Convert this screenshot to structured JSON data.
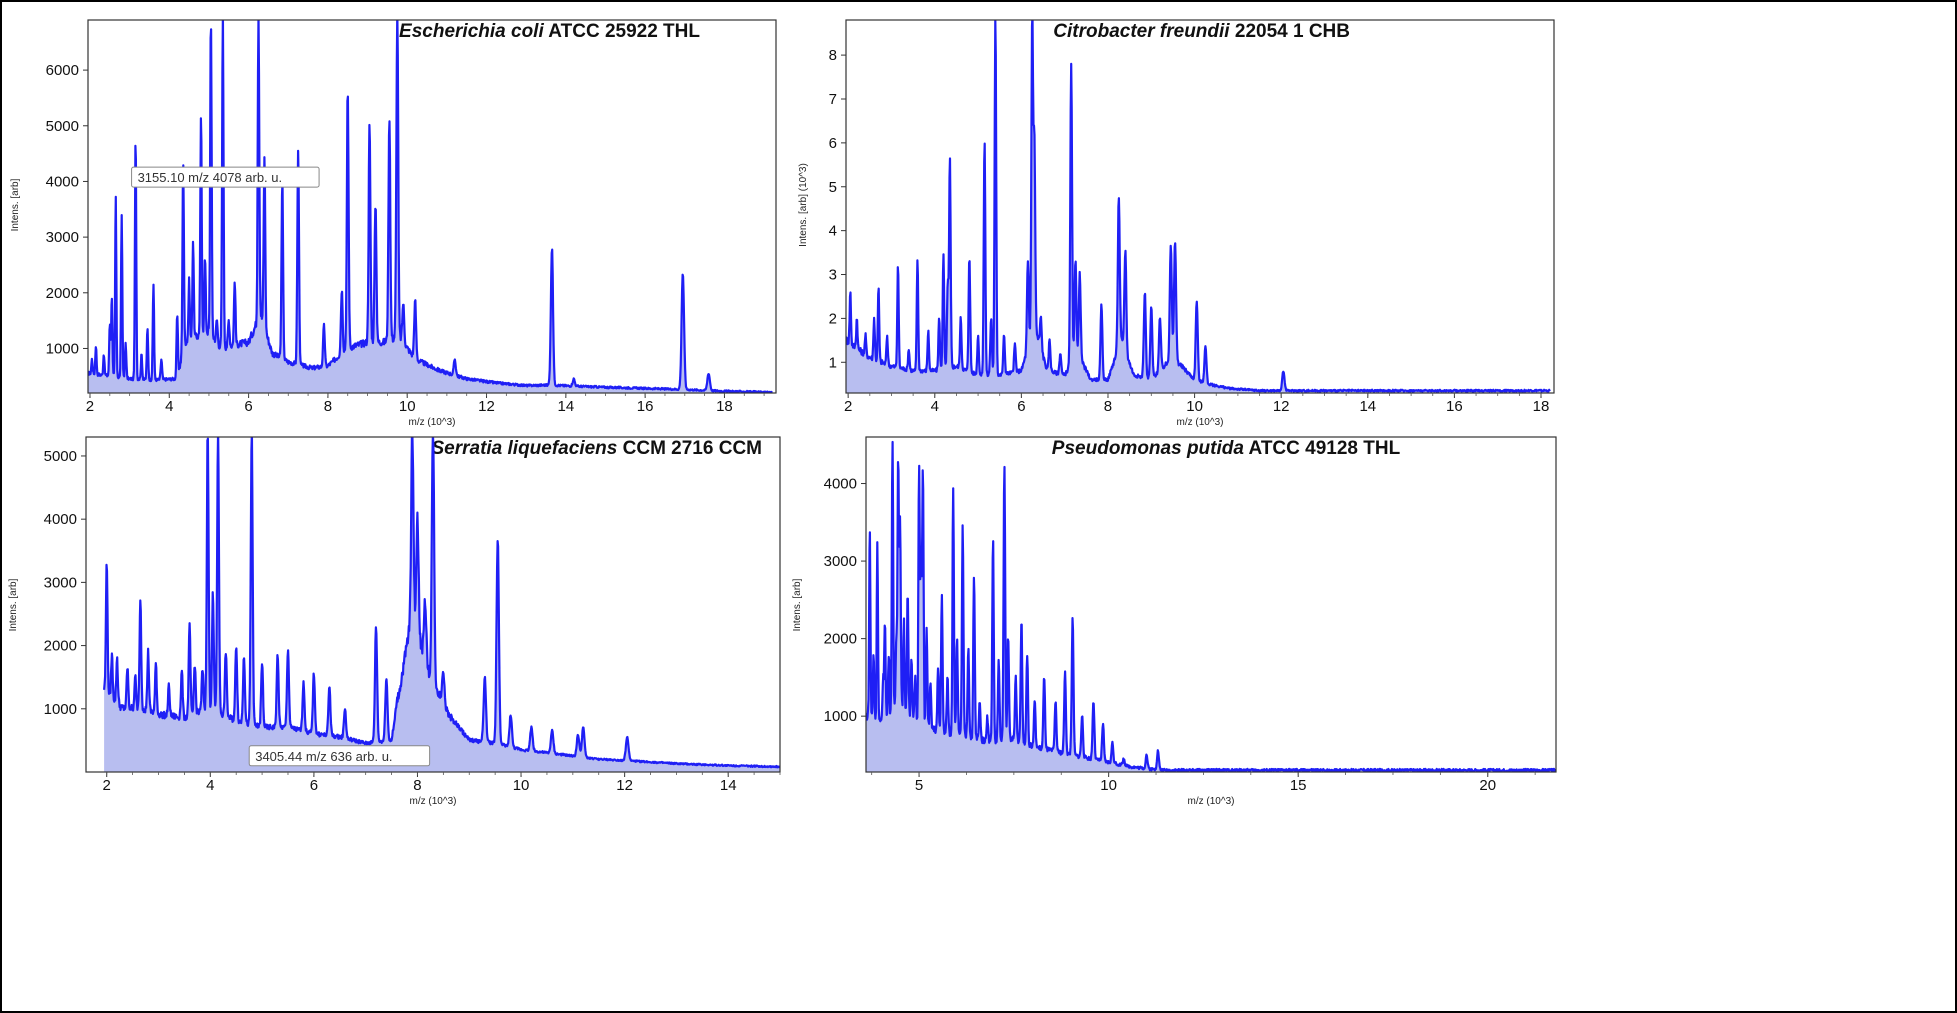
{
  "chart_data": [
    {
      "type": "area",
      "title_italic": "Escherichia coli",
      "title_rest": " ATCC 25922 THL",
      "xlabel": "m/z (10^3)",
      "ylabel": "Intens. [arb]",
      "xlim": [
        1.95,
        19.3
      ],
      "ylim": [
        200,
        6900
      ],
      "xticks": [
        2,
        4,
        6,
        8,
        10,
        12,
        14,
        16,
        18
      ],
      "yticks": [
        1000,
        2000,
        3000,
        4000,
        5000,
        6000
      ],
      "baseline": [
        [
          1.95,
          550
        ],
        [
          2.5,
          500
        ],
        [
          3,
          450
        ],
        [
          3.6,
          430
        ],
        [
          4.2,
          450
        ],
        [
          4.4,
          1100
        ],
        [
          4.7,
          1200
        ],
        [
          5,
          1300
        ],
        [
          5.3,
          1000
        ],
        [
          6,
          1100
        ],
        [
          6.3,
          1600
        ],
        [
          6.6,
          900
        ],
        [
          7,
          750
        ],
        [
          7.6,
          640
        ],
        [
          8,
          680
        ],
        [
          8.5,
          1000
        ],
        [
          9,
          1100
        ],
        [
          9.4,
          1100
        ],
        [
          9.8,
          1200
        ],
        [
          10.2,
          800
        ],
        [
          10.8,
          600
        ],
        [
          11.5,
          450
        ],
        [
          12.2,
          380
        ],
        [
          13,
          330
        ],
        [
          13.6,
          340
        ],
        [
          14.2,
          320
        ],
        [
          15,
          300
        ],
        [
          16,
          280
        ],
        [
          17,
          260
        ],
        [
          18,
          230
        ],
        [
          19.2,
          210
        ]
      ],
      "peaks": [
        [
          2.05,
          800
        ],
        [
          2.15,
          1050
        ],
        [
          2.35,
          900
        ],
        [
          2.5,
          1450
        ],
        [
          2.55,
          1950
        ],
        [
          2.65,
          3750
        ],
        [
          2.8,
          3400
        ],
        [
          2.9,
          1100
        ],
        [
          3.15,
          4850
        ],
        [
          3.3,
          900
        ],
        [
          3.45,
          1350
        ],
        [
          3.6,
          2150
        ],
        [
          3.8,
          800
        ],
        [
          4.2,
          1600
        ],
        [
          4.35,
          4350
        ],
        [
          4.5,
          2200
        ],
        [
          4.6,
          2950
        ],
        [
          4.8,
          5150
        ],
        [
          4.9,
          2600
        ],
        [
          5.05,
          7000
        ],
        [
          5.2,
          1500
        ],
        [
          5.35,
          7000
        ],
        [
          5.5,
          1500
        ],
        [
          5.65,
          2200
        ],
        [
          6.25,
          7000
        ],
        [
          6.4,
          4400
        ],
        [
          6.85,
          4050
        ],
        [
          7.25,
          4550
        ],
        [
          7.9,
          1400
        ],
        [
          8.35,
          2050
        ],
        [
          8.5,
          5650
        ],
        [
          9.05,
          5000
        ],
        [
          9.2,
          3600
        ],
        [
          9.55,
          5150
        ],
        [
          9.75,
          7000
        ],
        [
          9.9,
          1800
        ],
        [
          10.2,
          1850
        ],
        [
          11.2,
          800
        ],
        [
          13.65,
          2800
        ],
        [
          14.2,
          450
        ],
        [
          16.95,
          2350
        ],
        [
          17.6,
          550
        ]
      ],
      "annotation": "3155.10 m/z  4078 arb. u.",
      "annotation_at": [
        3.15,
        4078
      ],
      "y_exp": ""
    },
    {
      "type": "area",
      "title_italic": "Citrobacter freundii",
      "title_rest": " 22054 1 CHB",
      "xlabel": "m/z (10^3)",
      "ylabel": "Intens. [arb] (10^3)",
      "xlim": [
        1.95,
        18.3
      ],
      "ylim": [
        0.3,
        8.8
      ],
      "xticks": [
        2,
        4,
        6,
        8,
        10,
        12,
        14,
        16,
        18
      ],
      "yticks": [
        1,
        2,
        3,
        4,
        5,
        6,
        7,
        8
      ],
      "baseline": [
        [
          1.95,
          1.5
        ],
        [
          2.2,
          1.3
        ],
        [
          2.5,
          1.1
        ],
        [
          3,
          0.9
        ],
        [
          3.5,
          0.8
        ],
        [
          4,
          0.8
        ],
        [
          4.5,
          0.9
        ],
        [
          5,
          0.7
        ],
        [
          5.5,
          0.7
        ],
        [
          6,
          0.8
        ],
        [
          6.3,
          1.8
        ],
        [
          6.6,
          0.8
        ],
        [
          7,
          0.7
        ],
        [
          7.3,
          1.2
        ],
        [
          7.6,
          0.6
        ],
        [
          8,
          0.6
        ],
        [
          8.3,
          1.5
        ],
        [
          8.6,
          0.7
        ],
        [
          9,
          0.6
        ],
        [
          9.5,
          1.1
        ],
        [
          10,
          0.6
        ],
        [
          10.3,
          0.5
        ],
        [
          10.8,
          0.4
        ],
        [
          11.5,
          0.35
        ],
        [
          12,
          0.35
        ],
        [
          18.2,
          0.35
        ]
      ],
      "peaks": [
        [
          2.05,
          2.6
        ],
        [
          2.2,
          2.0
        ],
        [
          2.4,
          1.6
        ],
        [
          2.6,
          2.0
        ],
        [
          2.7,
          2.7
        ],
        [
          2.9,
          1.6
        ],
        [
          3.15,
          3.2
        ],
        [
          3.4,
          1.3
        ],
        [
          3.6,
          3.35
        ],
        [
          3.85,
          1.7
        ],
        [
          4.1,
          2.0
        ],
        [
          4.2,
          3.45
        ],
        [
          4.3,
          2.8
        ],
        [
          4.35,
          5.65
        ],
        [
          4.6,
          2.0
        ],
        [
          4.8,
          3.45
        ],
        [
          5.0,
          1.6
        ],
        [
          5.15,
          6.1
        ],
        [
          5.3,
          2.0
        ],
        [
          5.4,
          8.9
        ],
        [
          5.6,
          1.6
        ],
        [
          5.85,
          1.4
        ],
        [
          6.15,
          3.25
        ],
        [
          6.25,
          8.9
        ],
        [
          6.3,
          6.0
        ],
        [
          6.45,
          2.0
        ],
        [
          6.65,
          1.5
        ],
        [
          6.9,
          1.2
        ],
        [
          7.15,
          7.75
        ],
        [
          7.25,
          3.3
        ],
        [
          7.35,
          3.0
        ],
        [
          7.85,
          2.3
        ],
        [
          8.25,
          4.8
        ],
        [
          8.4,
          3.55
        ],
        [
          8.85,
          2.6
        ],
        [
          9.0,
          2.25
        ],
        [
          9.2,
          2.0
        ],
        [
          9.45,
          3.7
        ],
        [
          9.55,
          3.75
        ],
        [
          10.05,
          2.4
        ],
        [
          10.25,
          1.35
        ],
        [
          12.05,
          0.8
        ]
      ],
      "annotation": "",
      "annotation_at": [],
      "y_exp": "(10^3)"
    },
    {
      "type": "area",
      "title_italic": "Serratia liquefaciens",
      "title_rest": " CCM 2716 CCM",
      "xlabel": "m/z (10^3)",
      "ylabel": "Intens. [arb]",
      "xlim": [
        1.6,
        15
      ],
      "ylim": [
        0,
        5300
      ],
      "xticks": [
        2,
        4,
        6,
        8,
        10,
        12,
        14
      ],
      "yticks": [
        1000,
        2000,
        3000,
        4000,
        5000
      ],
      "baseline": [
        [
          1.95,
          1300
        ],
        [
          2.3,
          1000
        ],
        [
          2.7,
          1000
        ],
        [
          3,
          900
        ],
        [
          3.5,
          850
        ],
        [
          4,
          1000
        ],
        [
          4.5,
          800
        ],
        [
          5,
          700
        ],
        [
          5.5,
          700
        ],
        [
          6,
          600
        ],
        [
          6.5,
          550
        ],
        [
          7,
          450
        ],
        [
          7.5,
          500
        ],
        [
          7.9,
          2500
        ],
        [
          8.2,
          1600
        ],
        [
          8.6,
          900
        ],
        [
          9,
          500
        ],
        [
          9.5,
          450
        ],
        [
          10,
          350
        ],
        [
          10.5,
          300
        ],
        [
          11,
          250
        ],
        [
          11.5,
          200
        ],
        [
          12,
          180
        ],
        [
          13,
          130
        ],
        [
          14,
          100
        ],
        [
          15,
          80
        ]
      ],
      "peaks": [
        [
          2.0,
          3380
        ],
        [
          2.1,
          1850
        ],
        [
          2.2,
          1800
        ],
        [
          2.4,
          1650
        ],
        [
          2.55,
          1500
        ],
        [
          2.65,
          2750
        ],
        [
          2.8,
          1900
        ],
        [
          2.95,
          1700
        ],
        [
          3.2,
          1350
        ],
        [
          3.45,
          1600
        ],
        [
          3.6,
          2300
        ],
        [
          3.7,
          1700
        ],
        [
          3.85,
          1600
        ],
        [
          3.95,
          5400
        ],
        [
          4.05,
          2800
        ],
        [
          4.15,
          5400
        ],
        [
          4.3,
          1900
        ],
        [
          4.5,
          2000
        ],
        [
          4.65,
          1850
        ],
        [
          4.8,
          5400
        ],
        [
          5.0,
          1700
        ],
        [
          5.3,
          1850
        ],
        [
          5.5,
          1950
        ],
        [
          5.8,
          1400
        ],
        [
          6.0,
          1550
        ],
        [
          6.3,
          1350
        ],
        [
          6.6,
          1000
        ],
        [
          7.2,
          2300
        ],
        [
          7.4,
          1500
        ],
        [
          7.6,
          1100
        ],
        [
          7.9,
          5400
        ],
        [
          8.0,
          4050
        ],
        [
          8.15,
          2700
        ],
        [
          8.3,
          5400
        ],
        [
          8.5,
          1600
        ],
        [
          9.3,
          1500
        ],
        [
          9.55,
          3680
        ],
        [
          9.8,
          900
        ],
        [
          10.2,
          700
        ],
        [
          10.6,
          650
        ],
        [
          11.1,
          580
        ],
        [
          11.2,
          700
        ],
        [
          12.05,
          550
        ]
      ],
      "annotation": "3405.44 m/z  636 arb. u.",
      "annotation_at": [
        3.4,
        636
      ],
      "y_exp": ""
    },
    {
      "type": "area",
      "title_italic": "Pseudomonas putida",
      "title_rest": " ATCC 49128 THL",
      "xlabel": "m/z (10^3)",
      "ylabel": "Intens. [arb]",
      "xlim": [
        3.6,
        21.8
      ],
      "ylim": [
        280,
        4600
      ],
      "xticks": [
        5,
        10,
        15,
        20
      ],
      "yticks": [
        1000,
        2000,
        3000,
        4000
      ],
      "baseline": [
        [
          3.6,
          1000
        ],
        [
          4,
          900
        ],
        [
          4.5,
          1100
        ],
        [
          5,
          900
        ],
        [
          5.5,
          800
        ],
        [
          6,
          750
        ],
        [
          6.5,
          700
        ],
        [
          7,
          650
        ],
        [
          7.5,
          700
        ],
        [
          8,
          600
        ],
        [
          8.5,
          550
        ],
        [
          9,
          500
        ],
        [
          9.5,
          450
        ],
        [
          10,
          400
        ],
        [
          10.5,
          350
        ],
        [
          11,
          320
        ],
        [
          11.5,
          300
        ],
        [
          21.8,
          300
        ]
      ],
      "peaks": [
        [
          3.7,
          3450
        ],
        [
          3.8,
          1800
        ],
        [
          3.9,
          3250
        ],
        [
          4.05,
          1500
        ],
        [
          4.1,
          2250
        ],
        [
          4.2,
          1800
        ],
        [
          4.3,
          4600
        ],
        [
          4.4,
          2000
        ],
        [
          4.45,
          4400
        ],
        [
          4.5,
          3500
        ],
        [
          4.6,
          2200
        ],
        [
          4.7,
          2600
        ],
        [
          4.8,
          1700
        ],
        [
          4.9,
          1500
        ],
        [
          5.0,
          4200
        ],
        [
          5.05,
          2800
        ],
        [
          5.1,
          4200
        ],
        [
          5.2,
          2100
        ],
        [
          5.3,
          1400
        ],
        [
          5.5,
          1600
        ],
        [
          5.6,
          2580
        ],
        [
          5.75,
          1500
        ],
        [
          5.9,
          3950
        ],
        [
          6.0,
          2000
        ],
        [
          6.15,
          3450
        ],
        [
          6.3,
          1900
        ],
        [
          6.45,
          2800
        ],
        [
          6.6,
          1200
        ],
        [
          6.8,
          1000
        ],
        [
          6.95,
          3300
        ],
        [
          7.1,
          1700
        ],
        [
          7.25,
          4250
        ],
        [
          7.35,
          2000
        ],
        [
          7.55,
          1500
        ],
        [
          7.7,
          2250
        ],
        [
          7.85,
          1800
        ],
        [
          8.05,
          1200
        ],
        [
          8.3,
          1500
        ],
        [
          8.6,
          1200
        ],
        [
          8.85,
          1550
        ],
        [
          9.05,
          2250
        ],
        [
          9.3,
          1000
        ],
        [
          9.6,
          1200
        ],
        [
          9.85,
          900
        ],
        [
          10.1,
          650
        ],
        [
          10.4,
          450
        ],
        [
          11.0,
          500
        ],
        [
          11.3,
          550
        ]
      ],
      "annotation": "",
      "annotation_at": [],
      "y_exp": ""
    }
  ]
}
